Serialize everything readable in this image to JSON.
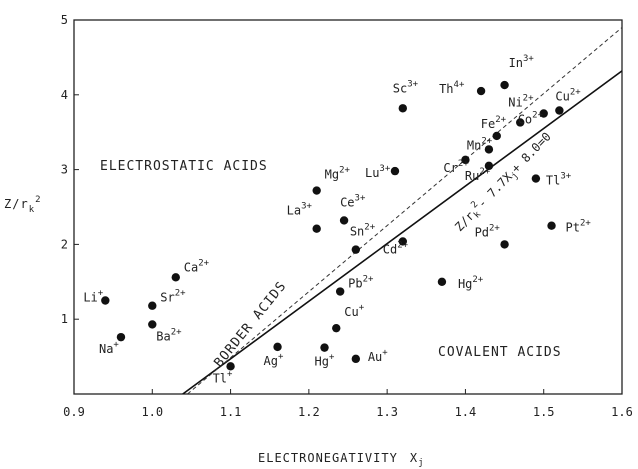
{
  "chart_data": {
    "type": "scatter",
    "xlabel": "ELECTRONEGATIVITY",
    "xlabel_symbol": "X",
    "xlabel_subscript": "j",
    "ylabel": "Z/r",
    "ylabel_subscript": "k",
    "ylabel_superscript": "2",
    "xlim": [
      0.9,
      1.6
    ],
    "ylim": [
      0,
      5
    ],
    "xticks": [
      "0.9",
      "1.0",
      "1.1",
      "1.2",
      "1.3",
      "1.4",
      "1.5",
      "1.6"
    ],
    "yticks": [
      "1",
      "2",
      "3",
      "4",
      "5"
    ],
    "grid": false,
    "regions": [
      {
        "label": "ELECTROSTATIC ACIDS",
        "x": 0.95,
        "y": 2.9
      },
      {
        "label": "BORDER ACIDS",
        "x": 1.17,
        "y": 1.35
      },
      {
        "label": "COVALENT ACIDS",
        "x": 1.46,
        "y": 0.92
      }
    ],
    "boundary_line": {
      "label": "Z/r",
      "label_sub": "k",
      "label_sup": "2",
      "label_rest": "- 7.7X",
      "label_rest_sub": "j",
      "label_tail": "+ 8.0=0",
      "slope": 7.7,
      "intercept": -8.0
    },
    "dashed_line": {
      "x": [
        1.045,
        1.6
      ],
      "y": [
        0.0,
        4.9
      ]
    },
    "points": [
      {
        "ion": "Li",
        "charge": "+",
        "x": 0.94,
        "y": 1.25
      },
      {
        "ion": "Na",
        "charge": "+",
        "x": 0.96,
        "y": 0.76
      },
      {
        "ion": "Ca",
        "charge": "2+",
        "x": 1.03,
        "y": 1.56
      },
      {
        "ion": "Sr",
        "charge": "2+",
        "x": 1.0,
        "y": 1.18
      },
      {
        "ion": "Ba",
        "charge": "2+",
        "x": 1.0,
        "y": 0.93
      },
      {
        "ion": "Tl",
        "charge": "+",
        "x": 1.1,
        "y": 0.37
      },
      {
        "ion": "Ag",
        "charge": "+",
        "x": 1.16,
        "y": 0.63
      },
      {
        "ion": "Hg",
        "charge": "+",
        "x": 1.22,
        "y": 0.62
      },
      {
        "ion": "Au",
        "charge": "+",
        "x": 1.26,
        "y": 0.47
      },
      {
        "ion": "Cu",
        "charge": "+",
        "x": 1.235,
        "y": 0.88
      },
      {
        "ion": "Pb",
        "charge": "2+",
        "x": 1.24,
        "y": 1.37
      },
      {
        "ion": "La",
        "charge": "3+",
        "x": 1.21,
        "y": 2.21
      },
      {
        "ion": "Ce",
        "charge": "3+",
        "x": 1.245,
        "y": 2.32
      },
      {
        "ion": "Mg",
        "charge": "2+",
        "x": 1.21,
        "y": 2.72
      },
      {
        "ion": "Sn",
        "charge": "2+",
        "x": 1.26,
        "y": 1.93
      },
      {
        "ion": "Cd",
        "charge": "2+",
        "x": 1.32,
        "y": 2.04
      },
      {
        "ion": "Lu",
        "charge": "3+",
        "x": 1.31,
        "y": 2.98
      },
      {
        "ion": "Sc",
        "charge": "3+",
        "x": 1.32,
        "y": 3.82
      },
      {
        "ion": "Hg",
        "charge": "2+",
        "x": 1.37,
        "y": 1.5
      },
      {
        "ion": "Cr",
        "charge": "2+",
        "x": 1.4,
        "y": 3.13
      },
      {
        "ion": "Ru",
        "charge": "2+",
        "x": 1.43,
        "y": 3.05
      },
      {
        "ion": "Mn",
        "charge": "2+",
        "x": 1.43,
        "y": 3.27
      },
      {
        "ion": "Fe",
        "charge": "2+",
        "x": 1.44,
        "y": 3.45
      },
      {
        "ion": "Th",
        "charge": "4+",
        "x": 1.42,
        "y": 4.05
      },
      {
        "ion": "In",
        "charge": "3+",
        "x": 1.45,
        "y": 4.13
      },
      {
        "ion": "Ni",
        "charge": "2+",
        "x": 1.47,
        "y": 3.63
      },
      {
        "ion": "Co",
        "charge": "2+",
        "x": 1.5,
        "y": 3.75
      },
      {
        "ion": "Cu",
        "charge": "2+",
        "x": 1.52,
        "y": 3.79
      },
      {
        "ion": "Tl",
        "charge": "3+",
        "x": 1.49,
        "y": 2.88
      },
      {
        "ion": "Pd",
        "charge": "2+",
        "x": 1.45,
        "y": 2.0
      },
      {
        "ion": "Pt",
        "charge": "2+",
        "x": 1.51,
        "y": 2.25
      }
    ]
  }
}
